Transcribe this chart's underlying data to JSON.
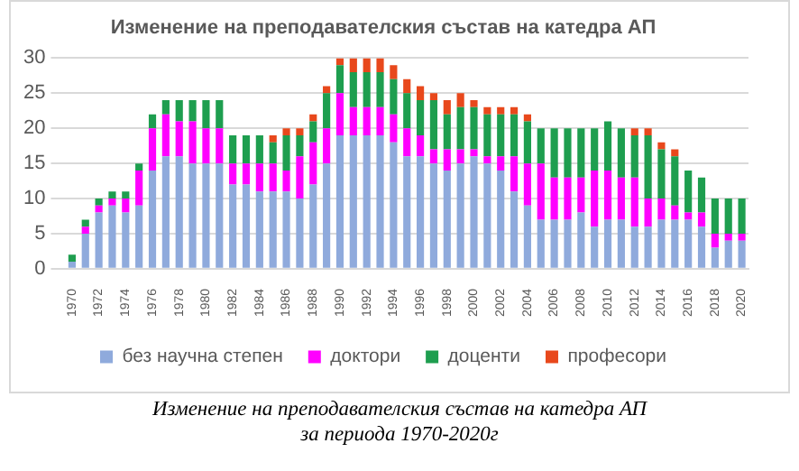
{
  "chart_data": {
    "type": "bar",
    "title": "Изменение на преподавателския състав на катедра АП",
    "stacked": true,
    "grid": "y",
    "legend": "bottom",
    "categories": [
      "1970",
      null,
      "1972",
      null,
      "1974",
      null,
      "1976",
      null,
      "1978",
      null,
      "1980",
      null,
      "1982",
      null,
      "1984",
      null,
      "1986",
      null,
      "1988",
      null,
      "1990",
      null,
      "1992",
      null,
      "1994",
      null,
      "1996",
      null,
      "1998",
      null,
      "2000",
      null,
      "2002",
      null,
      "2004",
      null,
      "2006",
      null,
      "2008",
      null,
      "2010",
      null,
      "2012",
      null,
      "2014",
      null,
      "2016",
      null,
      "2018",
      null,
      "2020"
    ],
    "ylim": [
      0,
      30
    ],
    "yticks": [
      0,
      5,
      10,
      15,
      20,
      25,
      30
    ],
    "series": [
      {
        "name": "без научна степен",
        "color": "#8faadc",
        "values": [
          1,
          5,
          8,
          9,
          8,
          9,
          14,
          16,
          16,
          15,
          15,
          15,
          12,
          12,
          11,
          11,
          11,
          10,
          12,
          15,
          19,
          19,
          19,
          19,
          18,
          16,
          16,
          15,
          14,
          15,
          16,
          15,
          14,
          11,
          9,
          7,
          7,
          7,
          8,
          6,
          7,
          7,
          6,
          6,
          7,
          7,
          7,
          6,
          3,
          4,
          4
        ]
      },
      {
        "name": "доктори",
        "color": "#ff00ff",
        "values": [
          0,
          1,
          1,
          1,
          2,
          5,
          6,
          6,
          5,
          6,
          5,
          5,
          3,
          3,
          4,
          4,
          3,
          6,
          6,
          5,
          6,
          4,
          4,
          4,
          4,
          4,
          3,
          2,
          3,
          2,
          1,
          1,
          2,
          5,
          6,
          8,
          6,
          6,
          5,
          8,
          7,
          6,
          7,
          4,
          3,
          2,
          1,
          2,
          2,
          1,
          1
        ]
      },
      {
        "name": "доценти",
        "color": "#1e9e4f",
        "values": [
          1,
          1,
          1,
          1,
          1,
          1,
          2,
          2,
          3,
          3,
          4,
          4,
          4,
          4,
          4,
          3,
          5,
          3,
          3,
          5,
          4,
          5,
          5,
          5,
          5,
          5,
          5,
          7,
          5,
          6,
          6,
          6,
          6,
          6,
          6,
          5,
          7,
          7,
          7,
          6,
          7,
          7,
          6,
          9,
          7,
          7,
          6,
          5,
          5,
          5,
          5
        ]
      },
      {
        "name": "професори",
        "color": "#e8481c",
        "values": [
          0,
          0,
          0,
          0,
          0,
          0,
          0,
          0,
          0,
          0,
          0,
          0,
          0,
          0,
          0,
          1,
          1,
          1,
          1,
          1,
          1,
          2,
          2,
          2,
          2,
          2,
          2,
          1,
          2,
          2,
          1,
          1,
          1,
          1,
          1,
          0,
          0,
          0,
          0,
          0,
          0,
          0,
          1,
          1,
          1,
          1,
          0,
          0,
          0,
          0,
          0
        ]
      }
    ],
    "annotations": [
      "Изменение на преподавателския състав на катедра АП\nза периода 1970-2020г"
    ]
  }
}
